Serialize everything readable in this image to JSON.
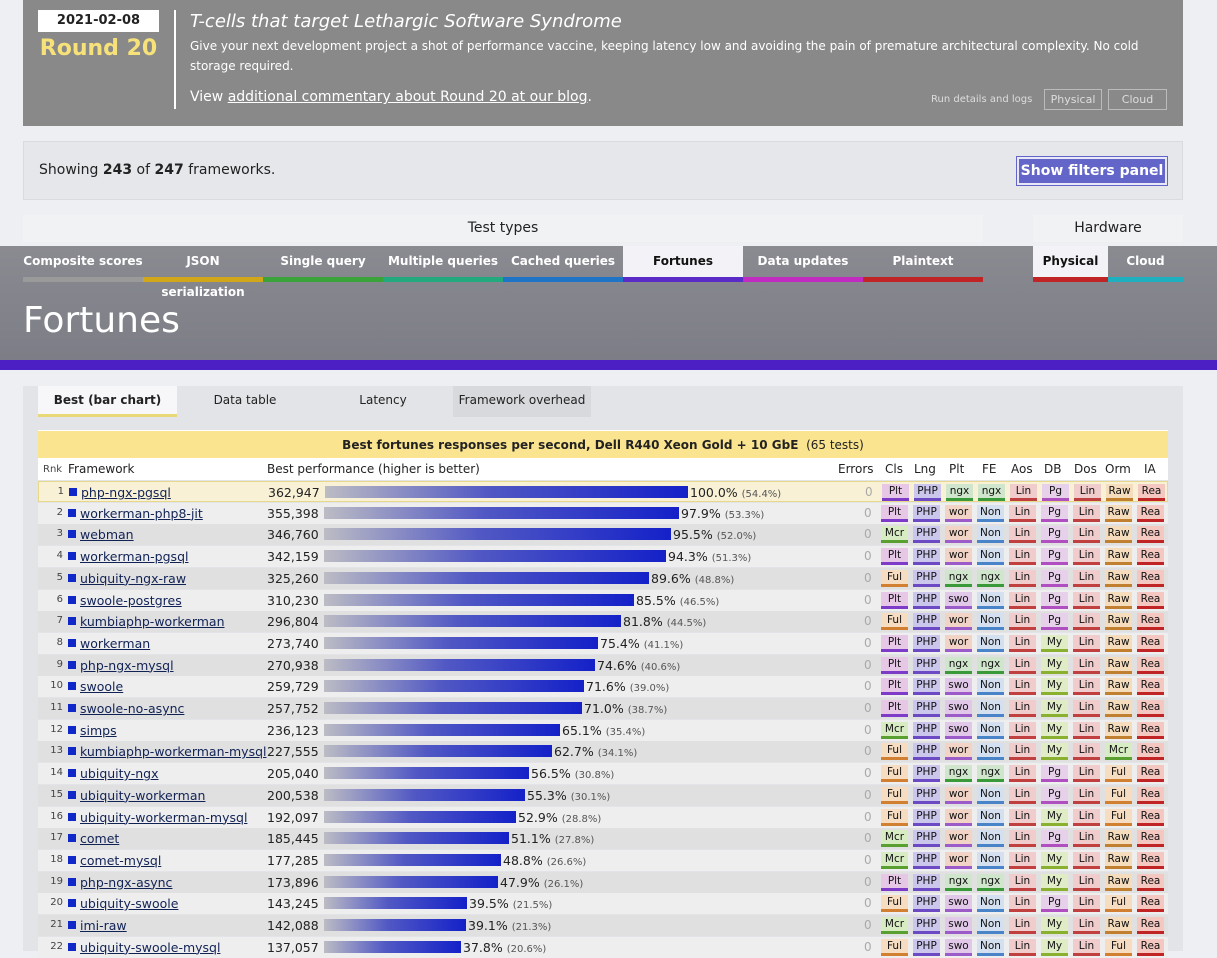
{
  "banner": {
    "date": "2021-02-08",
    "round": "Round 20",
    "headline": "T-cells that target Lethargic Software Syndrome",
    "blurb": "Give your next development project a shot of performance vaccine, keeping latency low and avoiding the pain of premature architectural complexity. No cold storage required.",
    "view_prefix": "View ",
    "view_link": "additional commentary about Round 20 at our blog",
    "view_suffix": ".",
    "run_details": "Run details and logs",
    "physical": "Physical",
    "cloud": "Cloud"
  },
  "filters": {
    "showing_prefix": "Showing ",
    "shown": "243",
    "of": " of ",
    "total": "247",
    "suffix": " frameworks.",
    "button": "Show filters panel"
  },
  "nav": {
    "test_types_label": "Test types",
    "hardware_label": "Hardware",
    "tests": [
      {
        "label": "Composite scores",
        "color": "#9a9a9a"
      },
      {
        "label": "JSON serialization",
        "color": "#d1a619"
      },
      {
        "label": "Single query",
        "color": "#3aa33a"
      },
      {
        "label": "Multiple queries",
        "color": "#23a97e"
      },
      {
        "label": "Cached queries",
        "color": "#1f74c6"
      },
      {
        "label": "Fortunes",
        "color": "#5b2bc8"
      },
      {
        "label": "Data updates",
        "color": "#c22bc0"
      },
      {
        "label": "Plaintext",
        "color": "#c02424"
      }
    ],
    "hardware": [
      {
        "label": "Physical",
        "color": "#c02424"
      },
      {
        "label": "Cloud",
        "color": "#1fb0c0"
      }
    ],
    "page_title": "Fortunes"
  },
  "subtabs": [
    "Best (bar chart)",
    "Data table",
    "Latency",
    "Framework overhead"
  ],
  "chart": {
    "title_bold": "Best fortunes responses per second, Dell R440 Xeon Gold + 10 GbE",
    "title_tests": "(65 tests)",
    "headers": {
      "rnk": "Rnk",
      "framework": "Framework",
      "best": "Best performance (higher is better)",
      "errors": "Errors",
      "cls": "Cls",
      "lng": "Lng",
      "plt": "Plt",
      "fe": "FE",
      "aos": "Aos",
      "db": "DB",
      "dos": "Dos",
      "orm": "Orm",
      "ia": "IA"
    }
  },
  "badge_colors": {
    "Plt": "#e6c8e6",
    "Mcr": "#d8ecc4",
    "Ful": "#f6dcc0",
    "PHP": "#cbc6ec",
    "ngx": "#cfe6cc",
    "wor": "#f1d4c6",
    "swo": "#e2c8e8",
    "Non": "#d4e0f0",
    "Lin": "#f0cccc",
    "Pg": "#e6d0ea",
    "My": "#e0ecc6",
    "Raw": "#f4dcbc",
    "Rea": "#f4c8c0"
  },
  "chart_data": {
    "type": "bar",
    "title": "Best fortunes responses per second, Dell R440 Xeon Gold + 10 GbE",
    "rows": [
      {
        "rank": 1,
        "name": "php-ngx-pgsql",
        "value": 362947,
        "display": "362,947",
        "pct": "100.0%",
        "pct_all": "(54.4%)",
        "errors": 0,
        "badges": [
          "Plt",
          "PHP",
          "ngx",
          "ngx",
          "Lin",
          "Pg",
          "Lin",
          "Raw",
          "Rea"
        ]
      },
      {
        "rank": 2,
        "name": "workerman-php8-jit",
        "value": 355398,
        "display": "355,398",
        "pct": "97.9%",
        "pct_all": "(53.3%)",
        "errors": 0,
        "badges": [
          "Plt",
          "PHP",
          "wor",
          "Non",
          "Lin",
          "Pg",
          "Lin",
          "Raw",
          "Rea"
        ]
      },
      {
        "rank": 3,
        "name": "webman",
        "value": 346760,
        "display": "346,760",
        "pct": "95.5%",
        "pct_all": "(52.0%)",
        "errors": 0,
        "badges": [
          "Mcr",
          "PHP",
          "wor",
          "Non",
          "Lin",
          "Pg",
          "Lin",
          "Raw",
          "Rea"
        ]
      },
      {
        "rank": 4,
        "name": "workerman-pgsql",
        "value": 342159,
        "display": "342,159",
        "pct": "94.3%",
        "pct_all": "(51.3%)",
        "errors": 0,
        "badges": [
          "Plt",
          "PHP",
          "wor",
          "Non",
          "Lin",
          "Pg",
          "Lin",
          "Raw",
          "Rea"
        ]
      },
      {
        "rank": 5,
        "name": "ubiquity-ngx-raw",
        "value": 325260,
        "display": "325,260",
        "pct": "89.6%",
        "pct_all": "(48.8%)",
        "errors": 0,
        "badges": [
          "Ful",
          "PHP",
          "ngx",
          "ngx",
          "Lin",
          "Pg",
          "Lin",
          "Raw",
          "Rea"
        ]
      },
      {
        "rank": 6,
        "name": "swoole-postgres",
        "value": 310230,
        "display": "310,230",
        "pct": "85.5%",
        "pct_all": "(46.5%)",
        "errors": 0,
        "badges": [
          "Plt",
          "PHP",
          "swo",
          "Non",
          "Lin",
          "Pg",
          "Lin",
          "Raw",
          "Rea"
        ]
      },
      {
        "rank": 7,
        "name": "kumbiaphp-workerman",
        "value": 296804,
        "display": "296,804",
        "pct": "81.8%",
        "pct_all": "(44.5%)",
        "errors": 0,
        "badges": [
          "Ful",
          "PHP",
          "wor",
          "Non",
          "Lin",
          "Pg",
          "Lin",
          "Raw",
          "Rea"
        ]
      },
      {
        "rank": 8,
        "name": "workerman",
        "value": 273740,
        "display": "273,740",
        "pct": "75.4%",
        "pct_all": "(41.1%)",
        "errors": 0,
        "badges": [
          "Plt",
          "PHP",
          "wor",
          "Non",
          "Lin",
          "My",
          "Lin",
          "Raw",
          "Rea"
        ]
      },
      {
        "rank": 9,
        "name": "php-ngx-mysql",
        "value": 270938,
        "display": "270,938",
        "pct": "74.6%",
        "pct_all": "(40.6%)",
        "errors": 0,
        "badges": [
          "Plt",
          "PHP",
          "ngx",
          "ngx",
          "Lin",
          "My",
          "Lin",
          "Raw",
          "Rea"
        ]
      },
      {
        "rank": 10,
        "name": "swoole",
        "value": 259729,
        "display": "259,729",
        "pct": "71.6%",
        "pct_all": "(39.0%)",
        "errors": 0,
        "badges": [
          "Plt",
          "PHP",
          "swo",
          "Non",
          "Lin",
          "My",
          "Lin",
          "Raw",
          "Rea"
        ]
      },
      {
        "rank": 11,
        "name": "swoole-no-async",
        "value": 257752,
        "display": "257,752",
        "pct": "71.0%",
        "pct_all": "(38.7%)",
        "errors": 0,
        "badges": [
          "Plt",
          "PHP",
          "swo",
          "Non",
          "Lin",
          "My",
          "Lin",
          "Raw",
          "Rea"
        ]
      },
      {
        "rank": 12,
        "name": "simps",
        "value": 236123,
        "display": "236,123",
        "pct": "65.1%",
        "pct_all": "(35.4%)",
        "errors": 0,
        "badges": [
          "Mcr",
          "PHP",
          "swo",
          "Non",
          "Lin",
          "My",
          "Lin",
          "Raw",
          "Rea"
        ]
      },
      {
        "rank": 13,
        "name": "kumbiaphp-workerman-mysql",
        "value": 227555,
        "display": "227,555",
        "pct": "62.7%",
        "pct_all": "(34.1%)",
        "errors": 0,
        "badges": [
          "Ful",
          "PHP",
          "wor",
          "Non",
          "Lin",
          "My",
          "Lin",
          "Mcr",
          "Rea"
        ]
      },
      {
        "rank": 14,
        "name": "ubiquity-ngx",
        "value": 205040,
        "display": "205,040",
        "pct": "56.5%",
        "pct_all": "(30.8%)",
        "errors": 0,
        "badges": [
          "Ful",
          "PHP",
          "ngx",
          "ngx",
          "Lin",
          "Pg",
          "Lin",
          "Ful",
          "Rea"
        ]
      },
      {
        "rank": 15,
        "name": "ubiquity-workerman",
        "value": 200538,
        "display": "200,538",
        "pct": "55.3%",
        "pct_all": "(30.1%)",
        "errors": 0,
        "badges": [
          "Ful",
          "PHP",
          "wor",
          "Non",
          "Lin",
          "Pg",
          "Lin",
          "Ful",
          "Rea"
        ]
      },
      {
        "rank": 16,
        "name": "ubiquity-workerman-mysql",
        "value": 192097,
        "display": "192,097",
        "pct": "52.9%",
        "pct_all": "(28.8%)",
        "errors": 0,
        "badges": [
          "Ful",
          "PHP",
          "wor",
          "Non",
          "Lin",
          "My",
          "Lin",
          "Ful",
          "Rea"
        ]
      },
      {
        "rank": 17,
        "name": "comet",
        "value": 185445,
        "display": "185,445",
        "pct": "51.1%",
        "pct_all": "(27.8%)",
        "errors": 0,
        "badges": [
          "Mcr",
          "PHP",
          "wor",
          "Non",
          "Lin",
          "Pg",
          "Lin",
          "Raw",
          "Rea"
        ]
      },
      {
        "rank": 18,
        "name": "comet-mysql",
        "value": 177285,
        "display": "177,285",
        "pct": "48.8%",
        "pct_all": "(26.6%)",
        "errors": 0,
        "badges": [
          "Mcr",
          "PHP",
          "wor",
          "Non",
          "Lin",
          "My",
          "Lin",
          "Raw",
          "Rea"
        ]
      },
      {
        "rank": 19,
        "name": "php-ngx-async",
        "value": 173896,
        "display": "173,896",
        "pct": "47.9%",
        "pct_all": "(26.1%)",
        "errors": 0,
        "badges": [
          "Plt",
          "PHP",
          "ngx",
          "ngx",
          "Lin",
          "My",
          "Lin",
          "Raw",
          "Rea"
        ]
      },
      {
        "rank": 20,
        "name": "ubiquity-swoole",
        "value": 143245,
        "display": "143,245",
        "pct": "39.5%",
        "pct_all": "(21.5%)",
        "errors": 0,
        "badges": [
          "Ful",
          "PHP",
          "swo",
          "Non",
          "Lin",
          "Pg",
          "Lin",
          "Ful",
          "Rea"
        ]
      },
      {
        "rank": 21,
        "name": "imi-raw",
        "value": 142088,
        "display": "142,088",
        "pct": "39.1%",
        "pct_all": "(21.3%)",
        "errors": 0,
        "badges": [
          "Mcr",
          "PHP",
          "swo",
          "Non",
          "Lin",
          "My",
          "Lin",
          "Raw",
          "Rea"
        ]
      },
      {
        "rank": 22,
        "name": "ubiquity-swoole-mysql",
        "value": 137057,
        "display": "137,057",
        "pct": "37.8%",
        "pct_all": "(20.6%)",
        "errors": 0,
        "badges": [
          "Ful",
          "PHP",
          "swo",
          "Non",
          "Lin",
          "My",
          "Lin",
          "Ful",
          "Rea"
        ]
      }
    ],
    "max_value": 362947
  }
}
